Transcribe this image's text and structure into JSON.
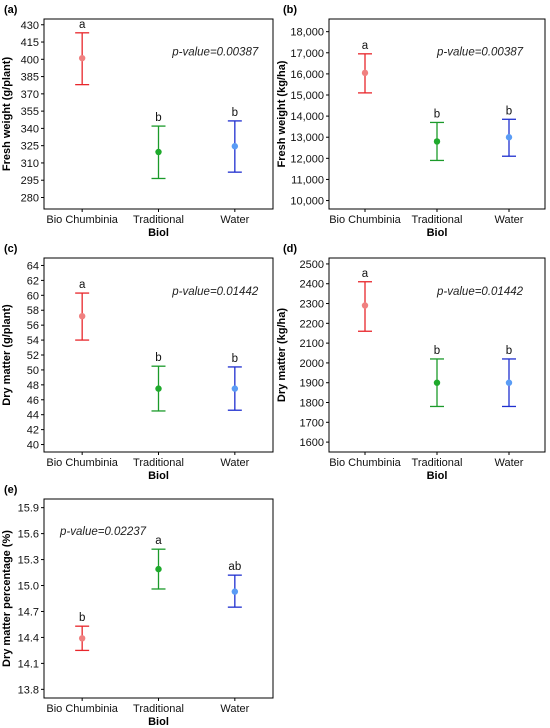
{
  "chart_data": [
    {
      "type": "errorbar",
      "panel": "(a)",
      "ylabel": "Fresh weight (g/plant)",
      "xlabel": "Biol",
      "categories": [
        "Bio Chumbinia",
        "Traditional",
        "Water"
      ],
      "ylim": [
        270,
        435
      ],
      "yticks": [
        280,
        295,
        310,
        325,
        340,
        355,
        370,
        385,
        400,
        415,
        430
      ],
      "ytick_labels": [
        "280",
        "295",
        "310",
        "325",
        "340",
        "355",
        "370",
        "385",
        "400",
        "415",
        "430"
      ],
      "means": [
        401,
        319.5,
        324.5
      ],
      "lower": [
        378,
        296.5,
        302
      ],
      "upper": [
        423,
        342,
        346.5
      ],
      "letters": [
        "a",
        "b",
        "b"
      ],
      "annotation": "p-value=0.00387",
      "annotation_anchor": "top-right"
    },
    {
      "type": "errorbar",
      "panel": "(b)",
      "ylabel": "Fresh weight (kg/ha)",
      "xlabel": "Biol",
      "categories": [
        "Bio Chumbinia",
        "Traditional",
        "Water"
      ],
      "ylim": [
        9600,
        18600
      ],
      "yticks": [
        10000,
        11000,
        12000,
        13000,
        14000,
        15000,
        16000,
        17000,
        18000
      ],
      "ytick_labels": [
        "10,000",
        "11,000",
        "12,000",
        "13,000",
        "14,000",
        "15,000",
        "16,000",
        "17,000",
        "18,000"
      ],
      "means": [
        16050,
        12800,
        13000
      ],
      "lower": [
        15100,
        11900,
        12100
      ],
      "upper": [
        16950,
        13700,
        13850
      ],
      "letters": [
        "a",
        "b",
        "b"
      ],
      "annotation": "p-value=0.00387",
      "annotation_anchor": "top-right"
    },
    {
      "type": "errorbar",
      "panel": "(c)",
      "ylabel": "Dry matter (g/plant)",
      "xlabel": "Biol",
      "categories": [
        "Bio Chumbinia",
        "Traditional",
        "Water"
      ],
      "ylim": [
        39,
        65
      ],
      "yticks": [
        40,
        42,
        44,
        46,
        48,
        50,
        52,
        54,
        56,
        58,
        60,
        62,
        64
      ],
      "ytick_labels": [
        "40",
        "42",
        "44",
        "46",
        "48",
        "50",
        "52",
        "54",
        "56",
        "58",
        "60",
        "62",
        "64"
      ],
      "means": [
        57.2,
        47.5,
        47.5
      ],
      "lower": [
        54.0,
        44.5,
        44.6
      ],
      "upper": [
        60.3,
        50.5,
        50.4
      ],
      "letters": [
        "a",
        "b",
        "b"
      ],
      "annotation": "p-value=0.01442",
      "annotation_anchor": "top-right"
    },
    {
      "type": "errorbar",
      "panel": "(d)",
      "ylabel": "Dry matter (kg/ha)",
      "xlabel": "Biol",
      "categories": [
        "Bio Chumbinia",
        "Traditional",
        "Water"
      ],
      "ylim": [
        1550,
        2530
      ],
      "yticks": [
        1600,
        1700,
        1800,
        1900,
        2000,
        2100,
        2200,
        2300,
        2400,
        2500
      ],
      "ytick_labels": [
        "1600",
        "1700",
        "1800",
        "1900",
        "2000",
        "2100",
        "2200",
        "2300",
        "2400",
        "2500"
      ],
      "means": [
        2290,
        1900,
        1900
      ],
      "lower": [
        2160,
        1780,
        1780
      ],
      "upper": [
        2410,
        2020,
        2020
      ],
      "letters": [
        "a",
        "b",
        "b"
      ],
      "annotation": "p-value=0.01442",
      "annotation_anchor": "top-right"
    },
    {
      "type": "errorbar",
      "panel": "(e)",
      "ylabel": "Dry matter percentage (%)",
      "xlabel": "Biol",
      "categories": [
        "Bio Chumbinia",
        "Traditional",
        "Water"
      ],
      "ylim": [
        13.7,
        16.0
      ],
      "yticks": [
        13.8,
        14.1,
        14.4,
        14.7,
        15.0,
        15.3,
        15.6,
        15.9
      ],
      "ytick_labels": [
        "13.8",
        "14.1",
        "14.4",
        "14.7",
        "15.0",
        "15.3",
        "15.6",
        "15.9"
      ],
      "means": [
        14.39,
        15.19,
        14.93
      ],
      "lower": [
        14.25,
        14.96,
        14.75
      ],
      "upper": [
        14.53,
        15.42,
        15.12
      ],
      "letters": [
        "b",
        "a",
        "ab"
      ],
      "annotation": "p-value=0.02237",
      "annotation_anchor": "top-left"
    }
  ],
  "colors": {
    "line": [
      "#e8262b",
      "#1b9a2a",
      "#1f2fcf"
    ],
    "point": [
      "#f08080",
      "#1faa2c",
      "#5a9cf5"
    ]
  }
}
